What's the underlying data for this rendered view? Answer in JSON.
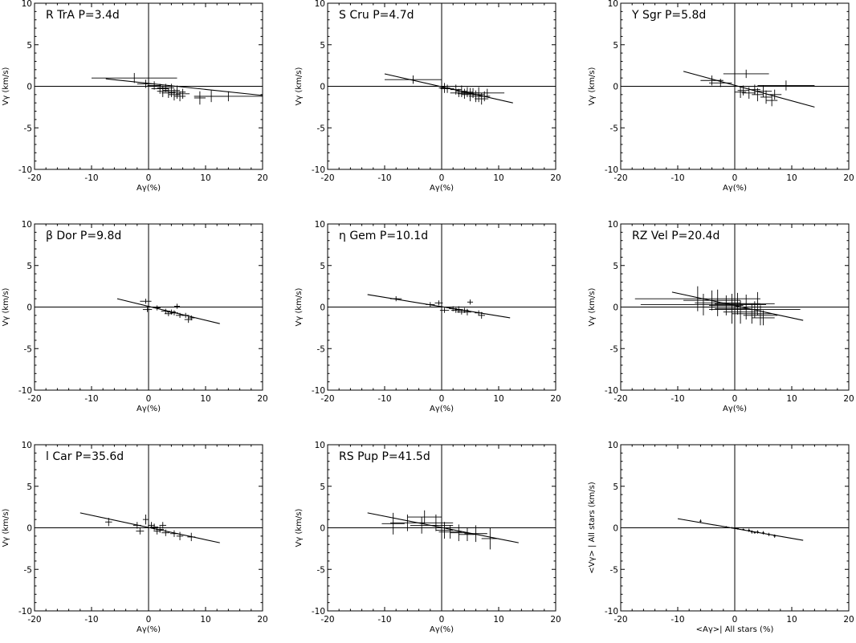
{
  "chart_data": [
    {
      "type": "scatter",
      "panel_label": "R TrA   P=3.4d",
      "xlabel": "Aγ(%)",
      "ylabel": "Vγ (km/s)",
      "xlim": [
        -20,
        20
      ],
      "ylim": [
        -10,
        10
      ],
      "xticks": [
        -20,
        -10,
        0,
        10,
        20
      ],
      "yticks": [
        -10,
        -5,
        0,
        5,
        10
      ],
      "fit_line": {
        "x": [
          -7.5,
          20
        ],
        "y": [
          0.9,
          -1.1
        ]
      },
      "points": [
        {
          "x": -2.5,
          "y": 1.0,
          "xerr": 7.5,
          "yerr": 0.6
        },
        {
          "x": -0.5,
          "y": 0.3,
          "xerr": 1.5,
          "yerr": 0.5
        },
        {
          "x": 1.0,
          "y": 0.1,
          "xerr": 1.2,
          "yerr": 0.5
        },
        {
          "x": 2.0,
          "y": -0.3,
          "xerr": 1.5,
          "yerr": 0.6
        },
        {
          "x": 2.5,
          "y": -0.6,
          "xerr": 1.0,
          "yerr": 0.7
        },
        {
          "x": 3.0,
          "y": -0.2,
          "xerr": 1.5,
          "yerr": 0.5
        },
        {
          "x": 3.5,
          "y": -0.8,
          "xerr": 1.2,
          "yerr": 0.6
        },
        {
          "x": 4.0,
          "y": -0.5,
          "xerr": 1.5,
          "yerr": 0.8
        },
        {
          "x": 4.5,
          "y": -1.0,
          "xerr": 1.0,
          "yerr": 0.7
        },
        {
          "x": 5.0,
          "y": -0.7,
          "xerr": 1.5,
          "yerr": 0.8
        },
        {
          "x": 5.5,
          "y": -1.2,
          "xerr": 1.0,
          "yerr": 0.6
        },
        {
          "x": 6.0,
          "y": -0.9,
          "xerr": 1.2,
          "yerr": 0.6
        },
        {
          "x": 9.0,
          "y": -1.4,
          "xerr": 1.0,
          "yerr": 0.8
        },
        {
          "x": 11.0,
          "y": -1.2,
          "xerr": 3.0,
          "yerr": 0.7
        },
        {
          "x": 14.0,
          "y": -1.2,
          "xerr": 6.0,
          "yerr": 0.6
        }
      ]
    },
    {
      "type": "scatter",
      "panel_label": "S Cru  P=4.7d",
      "xlabel": "Aγ(%)",
      "ylabel": "Vγ (km/s)",
      "xlim": [
        -20,
        20
      ],
      "ylim": [
        -10,
        10
      ],
      "xticks": [
        -20,
        -10,
        0,
        10,
        20
      ],
      "yticks": [
        -10,
        -5,
        0,
        5,
        10
      ],
      "fit_line": {
        "x": [
          -10,
          12.5
        ],
        "y": [
          1.5,
          -2.0
        ]
      },
      "points": [
        {
          "x": -5.0,
          "y": 0.8,
          "xerr": 5.0,
          "yerr": 0.5
        },
        {
          "x": 0.0,
          "y": 0.0,
          "xerr": 1.0,
          "yerr": 0.5
        },
        {
          "x": 0.5,
          "y": -0.2,
          "xerr": 1.0,
          "yerr": 0.6
        },
        {
          "x": 1.0,
          "y": -0.3,
          "xerr": 1.2,
          "yerr": 0.5
        },
        {
          "x": 2.5,
          "y": -0.4,
          "xerr": 1.0,
          "yerr": 0.6
        },
        {
          "x": 3.0,
          "y": -0.8,
          "xerr": 1.5,
          "yerr": 0.5
        },
        {
          "x": 3.5,
          "y": -0.6,
          "xerr": 1.0,
          "yerr": 0.7
        },
        {
          "x": 4.0,
          "y": -0.9,
          "xerr": 1.2,
          "yerr": 0.6
        },
        {
          "x": 4.5,
          "y": -0.7,
          "xerr": 1.0,
          "yerr": 0.6
        },
        {
          "x": 5.0,
          "y": -1.0,
          "xerr": 1.5,
          "yerr": 0.8
        },
        {
          "x": 5.5,
          "y": -0.8,
          "xerr": 1.0,
          "yerr": 0.6
        },
        {
          "x": 6.0,
          "y": -1.2,
          "xerr": 1.2,
          "yerr": 0.7
        },
        {
          "x": 6.5,
          "y": -1.0,
          "xerr": 1.0,
          "yerr": 0.9
        },
        {
          "x": 7.0,
          "y": -1.5,
          "xerr": 1.2,
          "yerr": 0.7
        },
        {
          "x": 7.5,
          "y": -1.2,
          "xerr": 1.0,
          "yerr": 0.6
        },
        {
          "x": 8.0,
          "y": -0.8,
          "xerr": 3.0,
          "yerr": 0.5
        }
      ]
    },
    {
      "type": "scatter",
      "panel_label": "Y Sgr   P=5.8d",
      "xlabel": "Aγ(%)",
      "ylabel": "Vγ (km/s)",
      "xlim": [
        -20,
        20
      ],
      "ylim": [
        -10,
        10
      ],
      "xticks": [
        -20,
        -10,
        0,
        10,
        20
      ],
      "yticks": [
        -10,
        -5,
        0,
        5,
        10
      ],
      "fit_line": {
        "x": [
          -9,
          14
        ],
        "y": [
          1.8,
          -2.5
        ]
      },
      "points": [
        {
          "x": -4.0,
          "y": 0.7,
          "xerr": 2.0,
          "yerr": 0.6
        },
        {
          "x": -2.5,
          "y": 0.4,
          "xerr": 2.0,
          "yerr": 0.5
        },
        {
          "x": 0.0,
          "y": 0.0,
          "xerr": 1.0,
          "yerr": 0.6
        },
        {
          "x": 1.0,
          "y": -0.7,
          "xerr": 1.0,
          "yerr": 0.7
        },
        {
          "x": 1.5,
          "y": -0.5,
          "xerr": 1.0,
          "yerr": 0.6
        },
        {
          "x": 2.0,
          "y": 1.5,
          "xerr": 4.0,
          "yerr": 0.5
        },
        {
          "x": 2.5,
          "y": -0.8,
          "xerr": 1.2,
          "yerr": 0.7
        },
        {
          "x": 3.5,
          "y": -0.4,
          "xerr": 1.0,
          "yerr": 0.6
        },
        {
          "x": 4.0,
          "y": -1.0,
          "xerr": 1.0,
          "yerr": 0.8
        },
        {
          "x": 5.0,
          "y": -0.6,
          "xerr": 1.5,
          "yerr": 0.7
        },
        {
          "x": 5.5,
          "y": -1.3,
          "xerr": 1.0,
          "yerr": 0.8
        },
        {
          "x": 6.5,
          "y": -1.7,
          "xerr": 1.0,
          "yerr": 0.7
        },
        {
          "x": 7.0,
          "y": -1.0,
          "xerr": 1.2,
          "yerr": 0.6
        },
        {
          "x": 9.0,
          "y": 0.1,
          "xerr": 5.0,
          "yerr": 0.6
        }
      ]
    },
    {
      "type": "scatter",
      "panel_label": "β Dor   P=9.8d",
      "xlabel": "Aγ(%)",
      "ylabel": "Vγ (km/s)",
      "xlim": [
        -20,
        20
      ],
      "ylim": [
        -10,
        10
      ],
      "xticks": [
        -20,
        -10,
        0,
        10,
        20
      ],
      "yticks": [
        -10,
        -5,
        0,
        5,
        10
      ],
      "fit_line": {
        "x": [
          -5.5,
          12.5
        ],
        "y": [
          1.0,
          -2.0
        ]
      },
      "points": [
        {
          "x": -0.5,
          "y": 0.7,
          "xerr": 1.0,
          "yerr": 0.3
        },
        {
          "x": -0.2,
          "y": -0.3,
          "xerr": 0.8,
          "yerr": 0.3
        },
        {
          "x": 1.5,
          "y": -0.1,
          "xerr": 0.6,
          "yerr": 0.3
        },
        {
          "x": 3.0,
          "y": -0.5,
          "xerr": 0.8,
          "yerr": 0.3
        },
        {
          "x": 3.5,
          "y": -0.8,
          "xerr": 0.7,
          "yerr": 0.3
        },
        {
          "x": 4.0,
          "y": -0.6,
          "xerr": 0.8,
          "yerr": 0.3
        },
        {
          "x": 4.5,
          "y": -0.7,
          "xerr": 0.7,
          "yerr": 0.3
        },
        {
          "x": 5.0,
          "y": 0.1,
          "xerr": 0.5,
          "yerr": 0.3
        },
        {
          "x": 5.5,
          "y": -1.0,
          "xerr": 0.7,
          "yerr": 0.3
        },
        {
          "x": 6.5,
          "y": -1.0,
          "xerr": 0.6,
          "yerr": 0.3
        },
        {
          "x": 7.0,
          "y": -1.5,
          "xerr": 0.7,
          "yerr": 0.4
        },
        {
          "x": 7.5,
          "y": -1.3,
          "xerr": 0.6,
          "yerr": 0.3
        }
      ]
    },
    {
      "type": "scatter",
      "panel_label": "η Gem  P=10.1d",
      "xlabel": "Aγ(%)",
      "ylabel": "Vγ (km/s)",
      "xlim": [
        -20,
        20
      ],
      "ylim": [
        -10,
        10
      ],
      "xticks": [
        -20,
        -10,
        0,
        10,
        20
      ],
      "yticks": [
        -10,
        -5,
        0,
        5,
        10
      ],
      "fit_line": {
        "x": [
          -13,
          12
        ],
        "y": [
          1.5,
          -1.3
        ]
      },
      "points": [
        {
          "x": -8.0,
          "y": 1.0,
          "xerr": 1.0,
          "yerr": 0.3
        },
        {
          "x": -2.0,
          "y": 0.3,
          "xerr": 0.8,
          "yerr": 0.3
        },
        {
          "x": -0.5,
          "y": 0.5,
          "xerr": 0.7,
          "yerr": 0.3
        },
        {
          "x": 0.5,
          "y": -0.4,
          "xerr": 0.8,
          "yerr": 0.3
        },
        {
          "x": 2.0,
          "y": -0.2,
          "xerr": 0.7,
          "yerr": 0.3
        },
        {
          "x": 2.5,
          "y": -0.4,
          "xerr": 0.8,
          "yerr": 0.3
        },
        {
          "x": 3.0,
          "y": -0.3,
          "xerr": 0.7,
          "yerr": 0.4
        },
        {
          "x": 3.5,
          "y": -0.6,
          "xerr": 0.8,
          "yerr": 0.3
        },
        {
          "x": 4.0,
          "y": -0.4,
          "xerr": 0.7,
          "yerr": 0.3
        },
        {
          "x": 4.5,
          "y": -0.6,
          "xerr": 0.7,
          "yerr": 0.4
        },
        {
          "x": 5.0,
          "y": 0.6,
          "xerr": 0.5,
          "yerr": 0.3
        },
        {
          "x": 6.5,
          "y": -0.7,
          "xerr": 0.7,
          "yerr": 0.3
        },
        {
          "x": 7.0,
          "y": -1.0,
          "xerr": 0.6,
          "yerr": 0.4
        }
      ]
    },
    {
      "type": "scatter",
      "panel_label": "RZ Vel   P=20.4d",
      "xlabel": "Aγ(%)",
      "ylabel": "Vγ (km/s)",
      "xlim": [
        -20,
        20
      ],
      "ylim": [
        -10,
        10
      ],
      "xticks": [
        -20,
        -10,
        0,
        10,
        20
      ],
      "yticks": [
        -10,
        -5,
        0,
        5,
        10
      ],
      "fit_line": {
        "x": [
          -11,
          12
        ],
        "y": [
          1.8,
          -1.6
        ]
      },
      "points": [
        {
          "x": -6.5,
          "y": 1.0,
          "xerr": 11.0,
          "yerr": 1.5
        },
        {
          "x": -5.5,
          "y": 0.3,
          "xerr": 11.0,
          "yerr": 1.3
        },
        {
          "x": -4.0,
          "y": 0.8,
          "xerr": 5.0,
          "yerr": 1.2
        },
        {
          "x": -3.0,
          "y": 0.5,
          "xerr": 4.0,
          "yerr": 1.6
        },
        {
          "x": -1.5,
          "y": 0.2,
          "xerr": 3.0,
          "yerr": 1.2
        },
        {
          "x": -0.5,
          "y": -0.2,
          "xerr": 3.0,
          "yerr": 1.8
        },
        {
          "x": 0.5,
          "y": 0.4,
          "xerr": 4.0,
          "yerr": 1.3
        },
        {
          "x": 1.0,
          "y": -0.6,
          "xerr": 3.0,
          "yerr": 1.4
        },
        {
          "x": 2.0,
          "y": 0.0,
          "xerr": 4.0,
          "yerr": 1.5
        },
        {
          "x": 3.0,
          "y": -0.8,
          "xerr": 3.5,
          "yerr": 1.2
        },
        {
          "x": 3.5,
          "y": -0.3,
          "xerr": 8.0,
          "yerr": 1.0
        },
        {
          "x": 4.0,
          "y": 0.4,
          "xerr": 3.0,
          "yerr": 1.4
        },
        {
          "x": 4.5,
          "y": -1.0,
          "xerr": 3.0,
          "yerr": 1.2
        },
        {
          "x": 5.0,
          "y": -1.3,
          "xerr": 2.0,
          "yerr": 0.9
        }
      ]
    },
    {
      "type": "scatter",
      "panel_label": "l Car   P=35.6d",
      "xlabel": "Aγ(%)",
      "ylabel": "Vγ (km/s)",
      "xlim": [
        -20,
        20
      ],
      "ylim": [
        -10,
        10
      ],
      "xticks": [
        -20,
        -10,
        0,
        10,
        20
      ],
      "yticks": [
        -10,
        -5,
        0,
        5,
        10
      ],
      "fit_line": {
        "x": [
          -12,
          12.5
        ],
        "y": [
          1.8,
          -1.8
        ]
      },
      "points": [
        {
          "x": -7.0,
          "y": 0.7,
          "xerr": 0.6,
          "yerr": 0.5
        },
        {
          "x": -2.0,
          "y": 0.3,
          "xerr": 0.7,
          "yerr": 0.4
        },
        {
          "x": -1.5,
          "y": -0.4,
          "xerr": 0.7,
          "yerr": 0.4
        },
        {
          "x": -0.5,
          "y": 1.0,
          "xerr": 0.5,
          "yerr": 0.6
        },
        {
          "x": 0.0,
          "y": 0.0,
          "xerr": 0.7,
          "yerr": 0.4
        },
        {
          "x": 0.5,
          "y": 0.3,
          "xerr": 0.6,
          "yerr": 0.4
        },
        {
          "x": 1.0,
          "y": 0.1,
          "xerr": 0.7,
          "yerr": 0.4
        },
        {
          "x": 1.5,
          "y": -0.4,
          "xerr": 0.6,
          "yerr": 0.4
        },
        {
          "x": 2.0,
          "y": -0.2,
          "xerr": 0.7,
          "yerr": 0.4
        },
        {
          "x": 2.5,
          "y": 0.3,
          "xerr": 0.6,
          "yerr": 0.4
        },
        {
          "x": 3.0,
          "y": -0.6,
          "xerr": 0.7,
          "yerr": 0.4
        },
        {
          "x": 4.5,
          "y": -0.7,
          "xerr": 0.7,
          "yerr": 0.4
        },
        {
          "x": 5.5,
          "y": -1.0,
          "xerr": 0.6,
          "yerr": 0.5
        },
        {
          "x": 7.5,
          "y": -1.1,
          "xerr": 0.7,
          "yerr": 0.5
        }
      ]
    },
    {
      "type": "scatter",
      "panel_label": "RS Pup   P=41.5d",
      "xlabel": "Aγ(%)",
      "ylabel": "Vγ (km/s)",
      "xlim": [
        -20,
        20
      ],
      "ylim": [
        -10,
        10
      ],
      "xticks": [
        -20,
        -10,
        0,
        10,
        20
      ],
      "yticks": [
        -10,
        -5,
        0,
        5,
        10
      ],
      "fit_line": {
        "x": [
          -13,
          13.5
        ],
        "y": [
          1.8,
          -1.8
        ]
      },
      "points": [
        {
          "x": -8.5,
          "y": 0.5,
          "xerr": 2.0,
          "yerr": 1.3
        },
        {
          "x": -6.0,
          "y": 0.6,
          "xerr": 3.0,
          "yerr": 1.0
        },
        {
          "x": -3.0,
          "y": 1.3,
          "xerr": 3.0,
          "yerr": 0.8
        },
        {
          "x": -3.5,
          "y": 0.3,
          "xerr": 2.0,
          "yerr": 1.0
        },
        {
          "x": -1.0,
          "y": 0.6,
          "xerr": 3.0,
          "yerr": 1.0
        },
        {
          "x": 0.0,
          "y": 0.3,
          "xerr": 2.0,
          "yerr": 1.2
        },
        {
          "x": 0.5,
          "y": -0.3,
          "xerr": 1.5,
          "yerr": 1.0
        },
        {
          "x": 1.5,
          "y": -0.5,
          "xerr": 2.0,
          "yerr": 0.8
        },
        {
          "x": 3.0,
          "y": -0.6,
          "xerr": 1.5,
          "yerr": 1.0
        },
        {
          "x": 4.5,
          "y": -0.8,
          "xerr": 1.5,
          "yerr": 0.8
        },
        {
          "x": 6.0,
          "y": -0.7,
          "xerr": 2.0,
          "yerr": 1.0
        },
        {
          "x": 8.5,
          "y": -1.3,
          "xerr": 1.5,
          "yerr": 1.3
        }
      ]
    },
    {
      "type": "scatter",
      "panel_label": "",
      "xlabel": "<Aγ>| All stars (%)",
      "ylabel": "<Vγ> | All stars (km/s)",
      "xlim": [
        -20,
        20
      ],
      "ylim": [
        -10,
        10
      ],
      "xticks": [
        -20,
        -10,
        0,
        10,
        20
      ],
      "yticks": [
        -10,
        -5,
        0,
        5,
        10
      ],
      "fit_line": {
        "x": [
          -10,
          12
        ],
        "y": [
          1.1,
          -1.5
        ]
      },
      "points": [
        {
          "x": -6.0,
          "y": 0.8,
          "xerr": 0.2,
          "yerr": 0.2
        },
        {
          "x": -1.5,
          "y": 0.1,
          "xerr": 0.2,
          "yerr": 0.1
        },
        {
          "x": -0.5,
          "y": 0.0,
          "xerr": 0.2,
          "yerr": 0.1
        },
        {
          "x": 0.5,
          "y": -0.1,
          "xerr": 0.2,
          "yerr": 0.1
        },
        {
          "x": 1.5,
          "y": -0.2,
          "xerr": 0.2,
          "yerr": 0.1
        },
        {
          "x": 2.5,
          "y": -0.3,
          "xerr": 0.2,
          "yerr": 0.2
        },
        {
          "x": 3.0,
          "y": -0.5,
          "xerr": 0.2,
          "yerr": 0.2
        },
        {
          "x": 3.5,
          "y": -0.6,
          "xerr": 0.2,
          "yerr": 0.1
        },
        {
          "x": 4.0,
          "y": -0.5,
          "xerr": 0.2,
          "yerr": 0.2
        },
        {
          "x": 5.0,
          "y": -0.6,
          "xerr": 0.2,
          "yerr": 0.2
        },
        {
          "x": 6.0,
          "y": -0.8,
          "xerr": 0.2,
          "yerr": 0.2
        },
        {
          "x": 7.0,
          "y": -1.0,
          "xerr": 0.2,
          "yerr": 0.2
        }
      ]
    }
  ]
}
